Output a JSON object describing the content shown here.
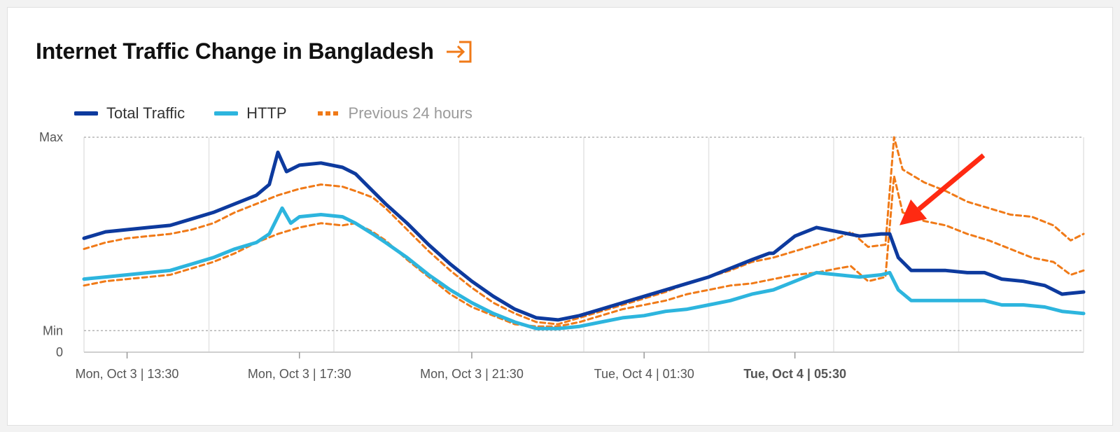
{
  "header": {
    "title": "Internet Traffic Change in Bangladesh",
    "export_icon": "export-icon"
  },
  "legend": [
    {
      "label": "Total Traffic",
      "color": "#0d3a9e",
      "style": "solid"
    },
    {
      "label": "HTTP",
      "color": "#2db5de",
      "style": "solid"
    },
    {
      "label": "Previous 24 hours",
      "color": "#f07a18",
      "style": "dashed"
    }
  ],
  "chart_data": {
    "type": "line",
    "title": "Internet Traffic Change in Bangladesh",
    "y_ticks": [
      {
        "label": "Max",
        "value": 1.0,
        "line": "dotted"
      },
      {
        "label": "Min",
        "value": 0.1,
        "line": "dotted"
      },
      {
        "label": "0",
        "value": 0.0,
        "line": "solid"
      }
    ],
    "ylim": [
      0,
      1
    ],
    "x_ticks": [
      {
        "label": "Mon, Oct 3 | 13:30",
        "hours": 1.0,
        "bold": false
      },
      {
        "label": "Mon, Oct 3 | 17:30",
        "hours": 5.0,
        "bold": false
      },
      {
        "label": "Mon, Oct 3 | 21:30",
        "hours": 9.0,
        "bold": false
      },
      {
        "label": "Tue, Oct 4 | 01:30",
        "hours": 13.0,
        "bold": false
      },
      {
        "label": "Tue, Oct 4 | 05:30",
        "hours": 16.5,
        "bold": true
      }
    ],
    "xlim": [
      0,
      23.2
    ],
    "grid": true,
    "legend_position": "top-left",
    "annotation": {
      "type": "arrow",
      "color": "#ff2a12",
      "target_hours": 18.7,
      "target_value": 0.6
    },
    "series": [
      {
        "name": "Total Traffic",
        "color": "#0d3a9e",
        "dash": false,
        "points": [
          [
            0,
            0.53
          ],
          [
            0.5,
            0.56
          ],
          [
            1,
            0.57
          ],
          [
            1.5,
            0.58
          ],
          [
            2,
            0.59
          ],
          [
            2.5,
            0.62
          ],
          [
            3,
            0.65
          ],
          [
            3.5,
            0.69
          ],
          [
            4,
            0.73
          ],
          [
            4.3,
            0.78
          ],
          [
            4.5,
            0.93
          ],
          [
            4.7,
            0.84
          ],
          [
            5,
            0.87
          ],
          [
            5.5,
            0.88
          ],
          [
            6,
            0.86
          ],
          [
            6.3,
            0.83
          ],
          [
            6.7,
            0.75
          ],
          [
            7,
            0.69
          ],
          [
            7.5,
            0.6
          ],
          [
            8,
            0.5
          ],
          [
            8.5,
            0.41
          ],
          [
            9,
            0.33
          ],
          [
            9.5,
            0.26
          ],
          [
            10,
            0.2
          ],
          [
            10.5,
            0.16
          ],
          [
            11,
            0.15
          ],
          [
            11.5,
            0.17
          ],
          [
            12,
            0.2
          ],
          [
            12.5,
            0.23
          ],
          [
            13,
            0.26
          ],
          [
            13.5,
            0.29
          ],
          [
            14,
            0.32
          ],
          [
            14.5,
            0.35
          ],
          [
            15,
            0.39
          ],
          [
            15.5,
            0.43
          ],
          [
            15.9,
            0.46
          ],
          [
            16,
            0.46
          ],
          [
            16.5,
            0.54
          ],
          [
            17,
            0.58
          ],
          [
            17.5,
            0.56
          ],
          [
            18,
            0.54
          ],
          [
            18.5,
            0.55
          ],
          [
            18.7,
            0.55
          ],
          [
            18.9,
            0.44
          ],
          [
            19.2,
            0.38
          ],
          [
            19.5,
            0.38
          ],
          [
            20,
            0.38
          ],
          [
            20.5,
            0.37
          ],
          [
            20.9,
            0.37
          ],
          [
            21.3,
            0.34
          ],
          [
            21.8,
            0.33
          ],
          [
            22.3,
            0.31
          ],
          [
            22.7,
            0.27
          ],
          [
            23.2,
            0.28
          ]
        ]
      },
      {
        "name": "HTTP",
        "color": "#2db5de",
        "dash": false,
        "points": [
          [
            0,
            0.34
          ],
          [
            0.5,
            0.35
          ],
          [
            1,
            0.36
          ],
          [
            1.5,
            0.37
          ],
          [
            2,
            0.38
          ],
          [
            2.5,
            0.41
          ],
          [
            3,
            0.44
          ],
          [
            3.5,
            0.48
          ],
          [
            4,
            0.51
          ],
          [
            4.3,
            0.55
          ],
          [
            4.6,
            0.67
          ],
          [
            4.8,
            0.6
          ],
          [
            5,
            0.63
          ],
          [
            5.5,
            0.64
          ],
          [
            6,
            0.63
          ],
          [
            6.3,
            0.6
          ],
          [
            6.7,
            0.55
          ],
          [
            7,
            0.51
          ],
          [
            7.5,
            0.44
          ],
          [
            8,
            0.36
          ],
          [
            8.5,
            0.29
          ],
          [
            9,
            0.23
          ],
          [
            9.5,
            0.18
          ],
          [
            10,
            0.14
          ],
          [
            10.5,
            0.11
          ],
          [
            11,
            0.11
          ],
          [
            11.5,
            0.12
          ],
          [
            12,
            0.14
          ],
          [
            12.5,
            0.16
          ],
          [
            13,
            0.17
          ],
          [
            13.5,
            0.19
          ],
          [
            14,
            0.2
          ],
          [
            14.5,
            0.22
          ],
          [
            15,
            0.24
          ],
          [
            15.5,
            0.27
          ],
          [
            16,
            0.29
          ],
          [
            16.5,
            0.33
          ],
          [
            17,
            0.37
          ],
          [
            17.5,
            0.36
          ],
          [
            18,
            0.35
          ],
          [
            18.5,
            0.36
          ],
          [
            18.7,
            0.37
          ],
          [
            18.9,
            0.29
          ],
          [
            19.2,
            0.24
          ],
          [
            19.5,
            0.24
          ],
          [
            20,
            0.24
          ],
          [
            20.5,
            0.24
          ],
          [
            20.9,
            0.24
          ],
          [
            21.3,
            0.22
          ],
          [
            21.8,
            0.22
          ],
          [
            22.3,
            0.21
          ],
          [
            22.7,
            0.19
          ],
          [
            23.2,
            0.18
          ]
        ]
      },
      {
        "name": "Previous 24 hours",
        "color": "#f07a18",
        "dash": true,
        "points": [
          [
            0,
            0.48
          ],
          [
            0.5,
            0.51
          ],
          [
            1,
            0.53
          ],
          [
            1.5,
            0.54
          ],
          [
            2,
            0.55
          ],
          [
            2.5,
            0.57
          ],
          [
            3,
            0.6
          ],
          [
            3.5,
            0.65
          ],
          [
            4,
            0.69
          ],
          [
            4.5,
            0.73
          ],
          [
            5,
            0.76
          ],
          [
            5.5,
            0.78
          ],
          [
            6,
            0.77
          ],
          [
            6.3,
            0.75
          ],
          [
            6.7,
            0.72
          ],
          [
            7,
            0.67
          ],
          [
            7.5,
            0.57
          ],
          [
            8,
            0.47
          ],
          [
            8.5,
            0.38
          ],
          [
            9,
            0.3
          ],
          [
            9.5,
            0.23
          ],
          [
            10,
            0.18
          ],
          [
            10.5,
            0.14
          ],
          [
            11,
            0.13
          ],
          [
            11.5,
            0.16
          ],
          [
            12,
            0.19
          ],
          [
            12.5,
            0.22
          ],
          [
            13,
            0.25
          ],
          [
            13.5,
            0.28
          ],
          [
            14,
            0.32
          ],
          [
            14.5,
            0.35
          ],
          [
            15,
            0.38
          ],
          [
            15.5,
            0.42
          ],
          [
            16,
            0.44
          ],
          [
            16.5,
            0.47
          ],
          [
            17,
            0.5
          ],
          [
            17.5,
            0.53
          ],
          [
            17.8,
            0.56
          ],
          [
            18.2,
            0.49
          ],
          [
            18.6,
            0.5
          ],
          [
            18.8,
            1.0
          ],
          [
            19,
            0.85
          ],
          [
            19.5,
            0.79
          ],
          [
            20,
            0.75
          ],
          [
            20.5,
            0.7
          ],
          [
            21,
            0.67
          ],
          [
            21.5,
            0.64
          ],
          [
            22,
            0.63
          ],
          [
            22.5,
            0.59
          ],
          [
            22.9,
            0.52
          ],
          [
            23.2,
            0.55
          ]
        ]
      },
      {
        "name": "Previous 24 hours (lower band)",
        "color": "#f07a18",
        "dash": true,
        "points": [
          [
            0,
            0.31
          ],
          [
            0.5,
            0.33
          ],
          [
            1,
            0.34
          ],
          [
            1.5,
            0.35
          ],
          [
            2,
            0.36
          ],
          [
            2.5,
            0.39
          ],
          [
            3,
            0.42
          ],
          [
            3.5,
            0.46
          ],
          [
            4,
            0.51
          ],
          [
            4.5,
            0.55
          ],
          [
            5,
            0.58
          ],
          [
            5.5,
            0.6
          ],
          [
            6,
            0.59
          ],
          [
            6.3,
            0.6
          ],
          [
            6.7,
            0.56
          ],
          [
            7,
            0.52
          ],
          [
            7.5,
            0.43
          ],
          [
            8,
            0.35
          ],
          [
            8.5,
            0.27
          ],
          [
            9,
            0.21
          ],
          [
            9.5,
            0.17
          ],
          [
            10,
            0.13
          ],
          [
            10.5,
            0.12
          ],
          [
            11,
            0.12
          ],
          [
            11.5,
            0.14
          ],
          [
            12,
            0.17
          ],
          [
            12.5,
            0.2
          ],
          [
            13,
            0.22
          ],
          [
            13.5,
            0.24
          ],
          [
            14,
            0.27
          ],
          [
            14.5,
            0.29
          ],
          [
            15,
            0.31
          ],
          [
            15.5,
            0.32
          ],
          [
            16,
            0.34
          ],
          [
            16.5,
            0.36
          ],
          [
            17,
            0.37
          ],
          [
            17.5,
            0.39
          ],
          [
            17.8,
            0.4
          ],
          [
            18.2,
            0.33
          ],
          [
            18.6,
            0.35
          ],
          [
            18.8,
            0.82
          ],
          [
            19,
            0.65
          ],
          [
            19.5,
            0.61
          ],
          [
            20,
            0.59
          ],
          [
            20.5,
            0.55
          ],
          [
            21,
            0.52
          ],
          [
            21.5,
            0.48
          ],
          [
            22,
            0.44
          ],
          [
            22.5,
            0.42
          ],
          [
            22.9,
            0.36
          ],
          [
            23.2,
            0.38
          ]
        ]
      }
    ]
  }
}
